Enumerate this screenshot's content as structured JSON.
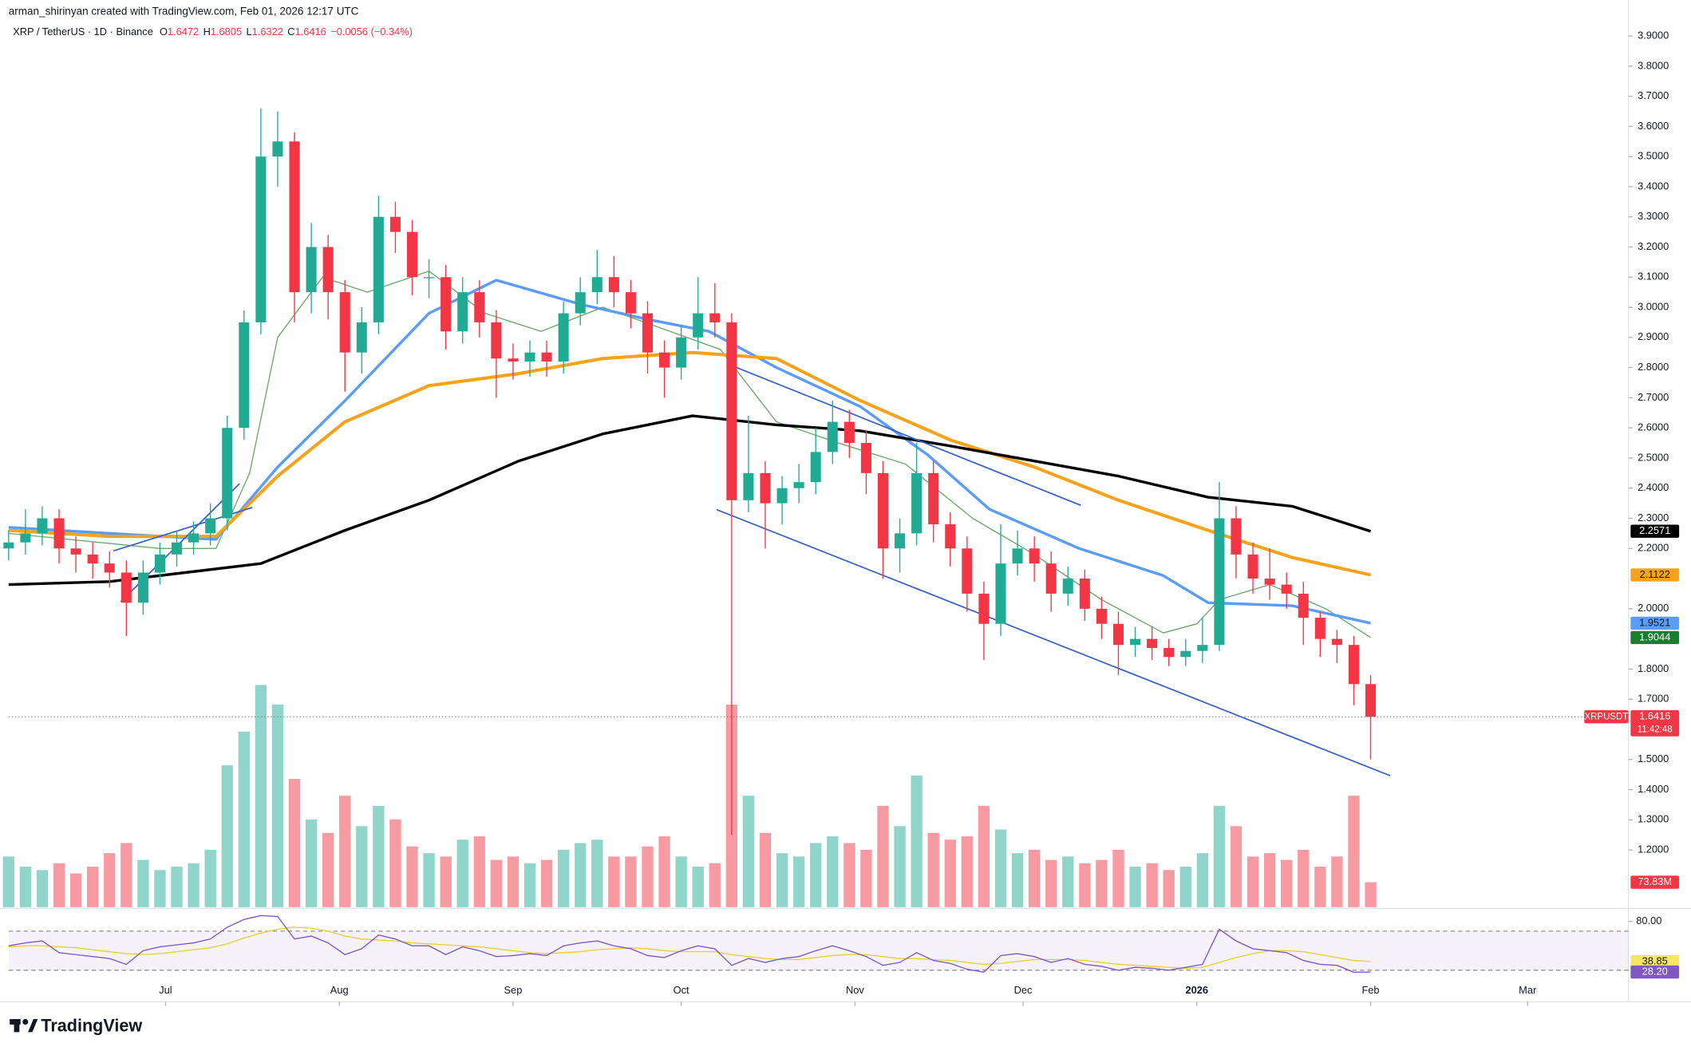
{
  "header": {
    "attribution": "arman_shirinyan created with TradingView.com, Feb 01, 2026 12:17 UTC",
    "symbol": "XRP / TetherUS · 1D · Binance",
    "ohlc": [
      {
        "key": "O",
        "value": 1.6472
      },
      {
        "key": "H",
        "value": 1.6805
      },
      {
        "key": "L",
        "value": 1.6322
      },
      {
        "key": "C",
        "value": 1.6416
      }
    ],
    "change": "−0.0056 (−0.34%)"
  },
  "chart_data": {
    "type": "candlestick",
    "xlim": [
      0,
      289
    ],
    "xticks": [
      {
        "value": 28,
        "label": "Jul"
      },
      {
        "value": 59,
        "label": "Aug"
      },
      {
        "value": 90,
        "label": "Sep"
      },
      {
        "value": 120,
        "label": "Oct"
      },
      {
        "value": 151,
        "label": "Nov"
      },
      {
        "value": 181,
        "label": "Dec"
      },
      {
        "value": 212,
        "label": "2026"
      },
      {
        "value": 243,
        "label": "Feb"
      },
      {
        "value": 271,
        "label": "Mar"
      }
    ],
    "ylim": [
      1.01,
      3.94
    ],
    "yticks": [
      {
        "value": 1.2,
        "label": "1.2000"
      },
      {
        "value": 1.3,
        "label": "1.3000"
      },
      {
        "value": 1.4,
        "label": "1.4000"
      },
      {
        "value": 1.5,
        "label": "1.5000"
      },
      {
        "value": 1.7,
        "label": "1.7000"
      },
      {
        "value": 1.8,
        "label": "1.8000"
      },
      {
        "value": 2.0,
        "label": "2.0000"
      },
      {
        "value": 2.2,
        "label": "2.2000"
      },
      {
        "value": 2.3,
        "label": "2.3000"
      },
      {
        "value": 2.4,
        "label": "2.4000"
      },
      {
        "value": 2.5,
        "label": "2.5000"
      },
      {
        "value": 2.6,
        "label": "2.6000"
      },
      {
        "value": 2.7,
        "label": "2.7000"
      },
      {
        "value": 2.8,
        "label": "2.8000"
      },
      {
        "value": 2.9,
        "label": "2.9000"
      },
      {
        "value": 3.0,
        "label": "3.0000"
      },
      {
        "value": 3.1,
        "label": "3.1000"
      },
      {
        "value": 3.2,
        "label": "3.2000"
      },
      {
        "value": 3.3,
        "label": "3.3000"
      },
      {
        "value": 3.4,
        "label": "3.4000"
      },
      {
        "value": 3.5,
        "label": "3.5000"
      },
      {
        "value": 3.6,
        "label": "3.6000"
      },
      {
        "value": 3.7,
        "label": "3.7000"
      },
      {
        "value": 3.8,
        "label": "3.8000"
      },
      {
        "value": 3.9,
        "label": "3.9000"
      }
    ],
    "up_color": "#22ab94",
    "down_color": "#f23645",
    "x": [
      0,
      3,
      6,
      9,
      12,
      15,
      18,
      21,
      24,
      27,
      30,
      33,
      36,
      39,
      42,
      45,
      48,
      51,
      54,
      57,
      60,
      63,
      66,
      69,
      72,
      75,
      78,
      81,
      84,
      87,
      90,
      93,
      96,
      99,
      102,
      105,
      108,
      111,
      114,
      117,
      120,
      123,
      126,
      129,
      132,
      135,
      138,
      141,
      144,
      147,
      150,
      153,
      156,
      159,
      162,
      165,
      168,
      171,
      174,
      177,
      180,
      183,
      186,
      189,
      192,
      195,
      198,
      201,
      204,
      207,
      210,
      213,
      216,
      219,
      222,
      225,
      228,
      231,
      234,
      237,
      240,
      243
    ],
    "open": [
      2.2,
      2.22,
      2.25,
      2.3,
      2.2,
      2.18,
      2.15,
      2.12,
      2.02,
      2.12,
      2.18,
      2.22,
      2.25,
      2.3,
      2.6,
      2.95,
      3.5,
      3.55,
      3.05,
      3.2,
      3.05,
      2.85,
      2.95,
      3.3,
      3.25,
      3.1,
      3.1,
      2.92,
      3.05,
      2.95,
      2.83,
      2.82,
      2.85,
      2.82,
      2.98,
      3.05,
      3.1,
      3.05,
      2.98,
      2.85,
      2.8,
      2.9,
      2.98,
      2.95,
      2.36,
      2.45,
      2.35,
      2.4,
      2.42,
      2.52,
      2.62,
      2.55,
      2.45,
      2.2,
      2.25,
      2.45,
      2.28,
      2.2,
      2.05,
      1.95,
      2.15,
      2.2,
      2.15,
      2.05,
      2.1,
      2.0,
      1.95,
      1.88,
      1.9,
      1.87,
      1.84,
      1.86,
      1.88,
      2.3,
      2.18,
      2.1,
      2.08,
      2.05,
      1.97,
      1.9,
      1.88,
      1.75
    ],
    "high": [
      2.26,
      2.33,
      2.34,
      2.33,
      2.24,
      2.22,
      2.19,
      2.16,
      2.16,
      2.22,
      2.26,
      2.29,
      2.35,
      2.64,
      2.99,
      3.66,
      3.65,
      3.58,
      3.28,
      3.24,
      3.09,
      3.0,
      3.37,
      3.35,
      3.29,
      3.16,
      3.14,
      3.1,
      3.09,
      2.99,
      2.88,
      2.89,
      2.89,
      3.02,
      3.1,
      3.19,
      3.17,
      3.09,
      3.02,
      2.89,
      2.94,
      3.1,
      3.08,
      2.98,
      2.64,
      2.49,
      2.44,
      2.48,
      2.6,
      2.69,
      2.66,
      2.59,
      2.49,
      2.3,
      2.55,
      2.49,
      2.32,
      2.24,
      2.09,
      2.28,
      2.26,
      2.24,
      2.19,
      2.14,
      2.13,
      2.04,
      1.99,
      1.94,
      1.94,
      1.9,
      1.9,
      1.97,
      2.42,
      2.34,
      2.22,
      2.2,
      2.12,
      2.09,
      1.99,
      1.93,
      1.91,
      1.78
    ],
    "low": [
      2.16,
      2.18,
      2.21,
      2.15,
      2.12,
      2.1,
      2.07,
      1.91,
      1.98,
      2.08,
      2.14,
      2.18,
      2.21,
      2.26,
      2.56,
      2.91,
      3.4,
      2.95,
      2.98,
      2.96,
      2.72,
      2.78,
      2.91,
      3.18,
      3.04,
      3.03,
      2.86,
      2.88,
      2.9,
      2.7,
      2.76,
      2.77,
      2.77,
      2.78,
      2.94,
      3.01,
      3.0,
      2.93,
      2.78,
      2.7,
      2.76,
      2.86,
      2.9,
      1.25,
      2.32,
      2.2,
      2.28,
      2.35,
      2.38,
      2.48,
      2.5,
      2.38,
      2.1,
      2.12,
      2.21,
      2.22,
      2.14,
      1.99,
      1.83,
      1.91,
      2.11,
      2.09,
      1.99,
      2.01,
      1.96,
      1.9,
      1.78,
      1.84,
      1.83,
      1.81,
      1.81,
      1.82,
      1.86,
      2.1,
      2.05,
      2.03,
      2.0,
      1.88,
      1.84,
      1.82,
      1.68,
      1.5
    ],
    "close": [
      2.22,
      2.25,
      2.3,
      2.2,
      2.18,
      2.15,
      2.12,
      2.02,
      2.12,
      2.18,
      2.22,
      2.25,
      2.3,
      2.6,
      2.95,
      3.5,
      3.55,
      3.05,
      3.2,
      3.05,
      2.85,
      2.95,
      3.3,
      3.25,
      3.1,
      3.1,
      2.92,
      3.05,
      2.95,
      2.83,
      2.82,
      2.85,
      2.82,
      2.98,
      3.05,
      3.1,
      3.05,
      2.98,
      2.85,
      2.8,
      2.9,
      2.98,
      2.95,
      2.36,
      2.45,
      2.35,
      2.4,
      2.42,
      2.52,
      2.62,
      2.55,
      2.45,
      2.2,
      2.25,
      2.45,
      2.28,
      2.2,
      2.05,
      1.95,
      2.15,
      2.2,
      2.15,
      2.05,
      2.1,
      2.0,
      1.95,
      1.88,
      1.9,
      1.87,
      1.84,
      1.86,
      1.88,
      2.3,
      2.18,
      2.1,
      2.08,
      2.05,
      1.97,
      1.9,
      1.88,
      1.75,
      1.6416
    ],
    "moving_averages": [
      {
        "color": "#6aa96a",
        "x": [
          0,
          27,
          37,
          43,
          48,
          56,
          64,
          75,
          85,
          95,
          106,
          118,
          127,
          137,
          148,
          160,
          172,
          183,
          195,
          206,
          212,
          216,
          225,
          235,
          243
        ],
        "values": [
          2.25,
          2.2,
          2.2,
          2.45,
          2.9,
          3.1,
          3.05,
          3.12,
          2.98,
          2.92,
          3.0,
          2.92,
          2.86,
          2.62,
          2.55,
          2.48,
          2.3,
          2.18,
          2.03,
          1.92,
          1.95,
          2.03,
          2.08,
          2.0,
          1.9044
        ],
        "label_color": "#1b7d32"
      },
      {
        "color": "#5b9cf6",
        "x": [
          0,
          18,
          37,
          48,
          60,
          75,
          87,
          102,
          114,
          125,
          137,
          152,
          164,
          175,
          191,
          206,
          214,
          229,
          243
        ],
        "values": [
          2.27,
          2.25,
          2.23,
          2.47,
          2.69,
          2.98,
          3.09,
          3.01,
          2.96,
          2.92,
          2.8,
          2.67,
          2.51,
          2.33,
          2.2,
          2.11,
          2.02,
          2.01,
          1.9521
        ],
        "label_color": "#5b9cf6"
      },
      {
        "color": "#f7a21b",
        "x": [
          0,
          18,
          37,
          48,
          60,
          75,
          91,
          106,
          122,
          137,
          152,
          168,
          183,
          198,
          214,
          229,
          243
        ],
        "values": [
          2.26,
          2.24,
          2.24,
          2.44,
          2.62,
          2.74,
          2.78,
          2.83,
          2.85,
          2.83,
          2.69,
          2.56,
          2.47,
          2.36,
          2.26,
          2.17,
          2.1122
        ],
        "label_color": "#f7a21b"
      },
      {
        "color": "#000000",
        "x": [
          0,
          18,
          45,
          60,
          75,
          91,
          106,
          122,
          137,
          152,
          168,
          183,
          198,
          214,
          229,
          243
        ],
        "values": [
          2.08,
          2.09,
          2.15,
          2.26,
          2.36,
          2.49,
          2.58,
          2.64,
          2.61,
          2.59,
          2.54,
          2.49,
          2.44,
          2.37,
          2.34,
          2.2571
        ],
        "label_color": "#000000"
      }
    ],
    "trendlines": [
      {
        "color": "#3a63c9",
        "x": [
          126.3,
          246.5
        ],
        "y": [
          2.329,
          1.446
        ]
      },
      {
        "color": "#3a63c9",
        "x": [
          129.2,
          191.3
        ],
        "y": [
          2.805,
          2.343
        ]
      },
      {
        "color": "#3a63c9",
        "x": [
          20,
          41.2
        ],
        "y": [
          2.023,
          2.415
        ]
      },
      {
        "color": "#3a63c9",
        "x": [
          18.7,
          43.5
        ],
        "y": [
          2.192,
          2.336
        ]
      }
    ],
    "last_price": {
      "symbol": "XRPUSDT",
      "value": 1.6416,
      "countdown": "11:42:48"
    },
    "volume": {
      "ylim": [
        0,
        740
      ],
      "values": [
        150,
        120,
        110,
        130,
        100,
        120,
        160,
        190,
        140,
        110,
        120,
        130,
        170,
        420,
        520,
        658,
        600,
        380,
        260,
        220,
        330,
        240,
        300,
        260,
        180,
        160,
        150,
        200,
        210,
        140,
        150,
        130,
        140,
        170,
        190,
        200,
        150,
        150,
        180,
        210,
        150,
        120,
        130,
        600,
        330,
        220,
        160,
        150,
        190,
        210,
        190,
        170,
        300,
        240,
        390,
        220,
        200,
        210,
        300,
        230,
        160,
        170,
        140,
        150,
        130,
        140,
        170,
        120,
        130,
        110,
        120,
        160,
        300,
        240,
        150,
        160,
        140,
        170,
        120,
        150,
        330,
        73.83
      ],
      "last_label": "73.83M"
    },
    "rsi": {
      "ylim": [
        0,
        89
      ],
      "yticks": [
        {
          "value": 80,
          "label": "80.00"
        }
      ],
      "bands": [
        30,
        70
      ],
      "color": "#7e57c2",
      "ma_color": "#e9cf3a",
      "values": [
        55,
        58,
        60,
        48,
        46,
        44,
        42,
        36,
        50,
        54,
        56,
        58,
        62,
        74,
        82,
        86,
        85,
        62,
        65,
        58,
        46,
        52,
        66,
        62,
        55,
        55,
        46,
        54,
        50,
        44,
        45,
        47,
        45,
        55,
        58,
        60,
        55,
        52,
        45,
        43,
        50,
        55,
        52,
        35,
        42,
        38,
        42,
        44,
        50,
        55,
        50,
        44,
        35,
        38,
        48,
        40,
        37,
        31,
        28,
        45,
        47,
        44,
        38,
        42,
        36,
        34,
        30,
        33,
        32,
        30,
        33,
        36,
        72,
        60,
        52,
        50,
        48,
        40,
        36,
        35,
        28,
        28.2
      ],
      "last_label": "28.20",
      "ma_values": [
        54,
        55,
        55,
        54,
        53,
        51,
        49,
        47,
        46,
        47,
        49,
        51,
        53,
        57,
        63,
        68,
        72,
        74,
        73,
        70,
        65,
        62,
        61,
        60,
        58,
        57,
        56,
        55,
        54,
        52,
        50,
        48,
        47,
        48,
        49,
        51,
        52,
        53,
        52,
        50,
        49,
        49,
        49,
        46,
        44,
        42,
        41,
        41,
        43,
        45,
        46,
        46,
        44,
        42,
        42,
        41,
        40,
        38,
        36,
        37,
        39,
        41,
        41,
        41,
        40,
        38,
        36,
        35,
        34,
        33,
        32,
        33,
        38,
        43,
        47,
        50,
        50,
        49,
        46,
        43,
        40,
        38.85
      ]
    }
  },
  "footer": {
    "brand": "TradingView"
  }
}
